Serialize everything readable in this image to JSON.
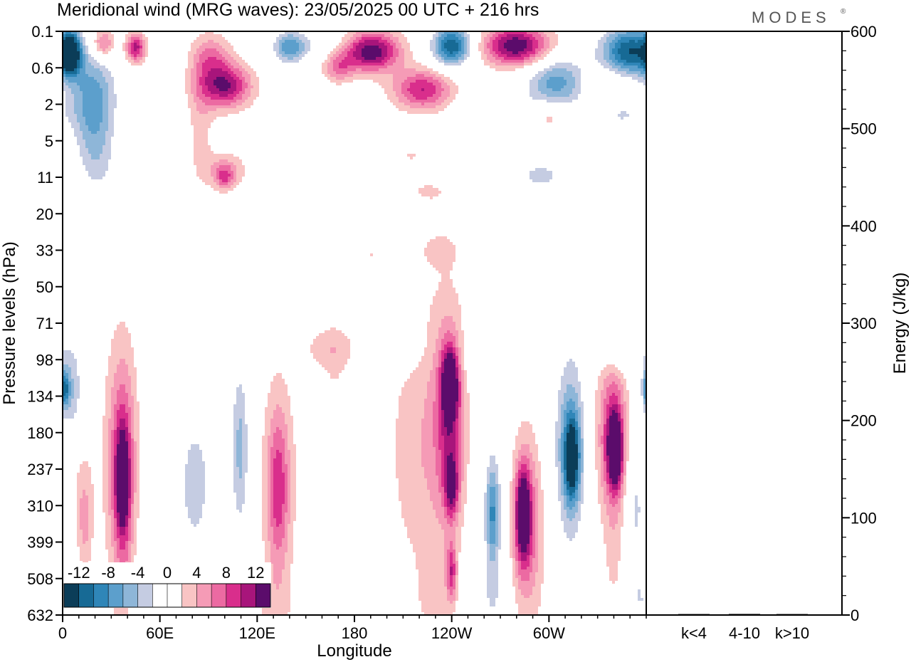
{
  "chart_data": [
    {
      "type": "heatmap",
      "title": "Meridional wind (MRG waves):  23/05/2025  00 UTC  + 216 hrs",
      "xlabel": "Longitude",
      "ylabel": "Pressure levels (hPa)",
      "x_tick_labels": [
        "0",
        "60E",
        "120E",
        "180",
        "120W",
        "60W"
      ],
      "x_tick_values_deg": [
        0,
        60,
        120,
        180,
        240,
        300
      ],
      "xlim_deg": [
        0,
        360
      ],
      "y_tick_labels": [
        "0.1",
        "0.6",
        "2",
        "5",
        "11",
        "20",
        "33",
        "50",
        "71",
        "98",
        "134",
        "180",
        "237",
        "310",
        "399",
        "508",
        "632"
      ],
      "y_scale": "level index (top 0.1 hPa to bottom 632 hPa)",
      "contour_levels": [
        -14,
        -12,
        -10,
        -8,
        -6,
        -4,
        -2,
        2,
        4,
        6,
        8,
        10,
        12,
        14
      ],
      "colorbar_labels": [
        "-12",
        "-8",
        "-4",
        "0",
        "4",
        "8",
        "12"
      ],
      "colorbar_colors": [
        "#0b3d58",
        "#176a95",
        "#2f86b8",
        "#5c9fcc",
        "#8eb6d8",
        "#c5cce2",
        "#ffffff",
        "#ffffff",
        "#f9c4c4",
        "#f59bb6",
        "#ec6aa2",
        "#d92e8c",
        "#a8157b",
        "#5b0c6b"
      ],
      "features": [
        {
          "x": 5,
          "y": 0.6,
          "rx": 6,
          "ry": 0.6,
          "v": -14
        },
        {
          "x": 18,
          "y": 1.7,
          "rx": 16,
          "ry": 1.2,
          "v": -8
        },
        {
          "x": 20,
          "y": 3.2,
          "rx": 12,
          "ry": 1.3,
          "v": -5
        },
        {
          "x": 25,
          "y": 0.35,
          "rx": 7,
          "ry": 0.4,
          "v": 8
        },
        {
          "x": 50,
          "y": 4.3,
          "rx": 30,
          "ry": 1.2,
          "v": -2
        },
        {
          "x": 45,
          "y": 0.45,
          "rx": 6,
          "ry": 0.4,
          "v": 11
        },
        {
          "x": 92,
          "y": 0.7,
          "rx": 12,
          "ry": 0.6,
          "v": 6
        },
        {
          "x": 100,
          "y": 1.5,
          "rx": 16,
          "ry": 0.6,
          "v": 12
        },
        {
          "x": 85,
          "y": 2.5,
          "rx": 8,
          "ry": 1.8,
          "v": 3
        },
        {
          "x": 100,
          "y": 3.8,
          "rx": 15,
          "ry": 0.5,
          "v": 4
        },
        {
          "x": 100,
          "y": 4.0,
          "rx": 6,
          "ry": 0.35,
          "v": 6
        },
        {
          "x": 140,
          "y": 0.45,
          "rx": 10,
          "ry": 0.45,
          "v": -9
        },
        {
          "x": 160,
          "y": 0.3,
          "rx": 20,
          "ry": 0.45,
          "v": -3
        },
        {
          "x": 190,
          "y": 0.55,
          "rx": 18,
          "ry": 0.55,
          "v": 14
        },
        {
          "x": 170,
          "y": 1.0,
          "rx": 9,
          "ry": 0.4,
          "v": 6
        },
        {
          "x": 222,
          "y": 1.6,
          "rx": 18,
          "ry": 0.55,
          "v": 10
        },
        {
          "x": 240,
          "y": 0.4,
          "rx": 12,
          "ry": 0.55,
          "v": -14
        },
        {
          "x": 280,
          "y": 0.4,
          "rx": 20,
          "ry": 0.55,
          "v": 14
        },
        {
          "x": 350,
          "y": 0.55,
          "rx": 18,
          "ry": 0.7,
          "v": -14
        },
        {
          "x": 305,
          "y": 1.4,
          "rx": 20,
          "ry": 0.7,
          "v": -9
        },
        {
          "x": 270,
          "y": 2.2,
          "rx": 22,
          "ry": 0.5,
          "v": -3
        },
        {
          "x": 300,
          "y": 2.3,
          "rx": 10,
          "ry": 0.35,
          "v": 4
        },
        {
          "x": 335,
          "y": 1.4,
          "rx": 16,
          "ry": 0.4,
          "v": 3
        },
        {
          "x": 345,
          "y": 2.3,
          "rx": 16,
          "ry": 0.5,
          "v": -4
        },
        {
          "x": 215,
          "y": 3.4,
          "rx": 22,
          "ry": 0.45,
          "v": 2
        },
        {
          "x": 295,
          "y": 3.9,
          "rx": 22,
          "ry": 0.4,
          "v": -2
        },
        {
          "x": 330,
          "y": 3.2,
          "rx": 18,
          "ry": 0.4,
          "v": 2
        },
        {
          "x": 225,
          "y": 4.4,
          "rx": 20,
          "ry": 0.45,
          "v": 2
        },
        {
          "x": 295,
          "y": 4.0,
          "rx": 14,
          "ry": 0.45,
          "v": -3
        },
        {
          "x": 40,
          "y": 5.7,
          "rx": 22,
          "ry": 0.55,
          "v": -2
        },
        {
          "x": 100,
          "y": 6.1,
          "rx": 14,
          "ry": 0.5,
          "v": 2
        },
        {
          "x": 232,
          "y": 6.0,
          "rx": 14,
          "ry": 0.5,
          "v": 2
        },
        {
          "x": 300,
          "y": 6.1,
          "rx": 18,
          "ry": 0.3,
          "v": -2
        },
        {
          "x": 190,
          "y": 6.1,
          "rx": 8,
          "ry": 0.35,
          "v": 2
        },
        {
          "x": 55,
          "y": 7.4,
          "rx": 14,
          "ry": 0.3,
          "v": -2
        },
        {
          "x": 115,
          "y": 8.5,
          "rx": 5,
          "ry": 0.8,
          "v": 2
        },
        {
          "x": 165,
          "y": 8.7,
          "rx": 18,
          "ry": 0.6,
          "v": 3
        },
        {
          "x": 210,
          "y": 8.6,
          "rx": 14,
          "ry": 0.7,
          "v": -2
        },
        {
          "x": 265,
          "y": 8.9,
          "rx": 18,
          "ry": 0.8,
          "v": -3
        },
        {
          "x": 343,
          "y": 8.7,
          "rx": 18,
          "ry": 0.6,
          "v": -4
        },
        {
          "x": 356,
          "y": 7.8,
          "rx": 8,
          "ry": 0.3,
          "v": 2
        },
        {
          "x": 5,
          "y": 9.8,
          "rx": 8,
          "ry": 1.3,
          "v": -6
        },
        {
          "x": 1,
          "y": 9.8,
          "rx": 3,
          "ry": 0.5,
          "v": -9
        },
        {
          "x": 36,
          "y": 11.7,
          "rx": 12,
          "ry": 3.8,
          "v": 4
        },
        {
          "x": 37,
          "y": 12.0,
          "rx": 7,
          "ry": 2.5,
          "v": 7
        },
        {
          "x": 37,
          "y": 12.4,
          "rx": 4,
          "ry": 1.3,
          "v": 9
        },
        {
          "x": 13,
          "y": 13.0,
          "rx": 6,
          "ry": 1.5,
          "v": 4
        },
        {
          "x": 75,
          "y": 13.0,
          "rx": 22,
          "ry": 3.5,
          "v": -2
        },
        {
          "x": 82,
          "y": 12.3,
          "rx": 8,
          "ry": 1.5,
          "v": -4
        },
        {
          "x": 105,
          "y": 11.0,
          "rx": 12,
          "ry": 3.5,
          "v": -2
        },
        {
          "x": 110,
          "y": 11.5,
          "rx": 5,
          "ry": 2.2,
          "v": -5
        },
        {
          "x": 133,
          "y": 12.3,
          "rx": 12,
          "ry": 3.0,
          "v": 4
        },
        {
          "x": 133,
          "y": 12.6,
          "rx": 6,
          "ry": 2.0,
          "v": 6
        },
        {
          "x": 168,
          "y": 10.8,
          "rx": 8,
          "ry": 2.7,
          "v": 2
        },
        {
          "x": 186,
          "y": 14.2,
          "rx": 14,
          "ry": 1.2,
          "v": -2
        },
        {
          "x": 216,
          "y": 11.5,
          "rx": 16,
          "ry": 3.5,
          "v": 3
        },
        {
          "x": 236,
          "y": 10.8,
          "rx": 14,
          "ry": 4.0,
          "v": 4
        },
        {
          "x": 239,
          "y": 10.6,
          "rx": 8,
          "ry": 2.3,
          "v": 7
        },
        {
          "x": 239,
          "y": 9.6,
          "rx": 5,
          "ry": 0.9,
          "v": 11
        },
        {
          "x": 240,
          "y": 12.5,
          "rx": 4,
          "ry": 0.8,
          "v": 9
        },
        {
          "x": 240,
          "y": 14.8,
          "rx": 3,
          "ry": 0.8,
          "v": 8
        },
        {
          "x": 267,
          "y": 13.5,
          "rx": 9,
          "ry": 3.0,
          "v": -4
        },
        {
          "x": 265,
          "y": 13.2,
          "rx": 4,
          "ry": 1.3,
          "v": -7
        },
        {
          "x": 288,
          "y": 13.8,
          "rx": 14,
          "ry": 3.3,
          "v": 3
        },
        {
          "x": 285,
          "y": 13.4,
          "rx": 8,
          "ry": 1.9,
          "v": 7
        },
        {
          "x": 284,
          "y": 13.2,
          "rx": 4,
          "ry": 1.1,
          "v": 11
        },
        {
          "x": 312,
          "y": 11.2,
          "rx": 13,
          "ry": 3.3,
          "v": -4
        },
        {
          "x": 314,
          "y": 11.6,
          "rx": 8,
          "ry": 2.0,
          "v": -7
        },
        {
          "x": 314,
          "y": 11.7,
          "rx": 4,
          "ry": 1.0,
          "v": -10
        },
        {
          "x": 337,
          "y": 10.8,
          "rx": 12,
          "ry": 2.8,
          "v": 4
        },
        {
          "x": 340,
          "y": 11.3,
          "rx": 7,
          "ry": 1.7,
          "v": 8
        },
        {
          "x": 341,
          "y": 11.5,
          "rx": 4,
          "ry": 0.9,
          "v": 11
        },
        {
          "x": 354,
          "y": 12.8,
          "rx": 6,
          "ry": 1.6,
          "v": -4
        },
        {
          "x": 354,
          "y": 15.0,
          "rx": 6,
          "ry": 1.8,
          "v": -2
        },
        {
          "x": 340,
          "y": 14.5,
          "rx": 6,
          "ry": 1.5,
          "v": 2
        },
        {
          "x": 10,
          "y": 15.7,
          "rx": 10,
          "ry": 1.0,
          "v": -3
        },
        {
          "x": 48,
          "y": 15.6,
          "rx": 7,
          "ry": 1.1,
          "v": -2
        },
        {
          "x": 93,
          "y": 15.3,
          "rx": 14,
          "ry": 1.4,
          "v": -2
        },
        {
          "x": 130,
          "y": 15.8,
          "rx": 14,
          "ry": 1.1,
          "v": 2
        },
        {
          "x": 230,
          "y": 15.6,
          "rx": 12,
          "ry": 1.1,
          "v": 2
        },
        {
          "x": 262,
          "y": 15.7,
          "rx": 14,
          "ry": 1.0,
          "v": -2
        },
        {
          "x": 358,
          "y": 15.7,
          "rx": 8,
          "ry": 1.0,
          "v": -2
        },
        {
          "x": 14,
          "y": 14.6,
          "rx": 4,
          "ry": 1.5,
          "v": 2
        },
        {
          "x": 38,
          "y": 15.3,
          "rx": 6,
          "ry": 1.5,
          "v": 2
        },
        {
          "x": 310,
          "y": 15.5,
          "rx": 8,
          "ry": 1.2,
          "v": -2
        }
      ],
      "energy_panel": {
        "ylabel": "Energy (J/kg)",
        "y_tick_labels": [
          "0",
          "100",
          "200",
          "300",
          "400",
          "500",
          "600"
        ],
        "ylim": [
          0,
          600
        ],
        "categories": [
          "k<4",
          "4-10",
          "k>10"
        ],
        "values": [
          0.5,
          1.2,
          0.3
        ]
      },
      "grid": false,
      "logo_text": "MODES",
      "logo_mark": "®"
    }
  ]
}
